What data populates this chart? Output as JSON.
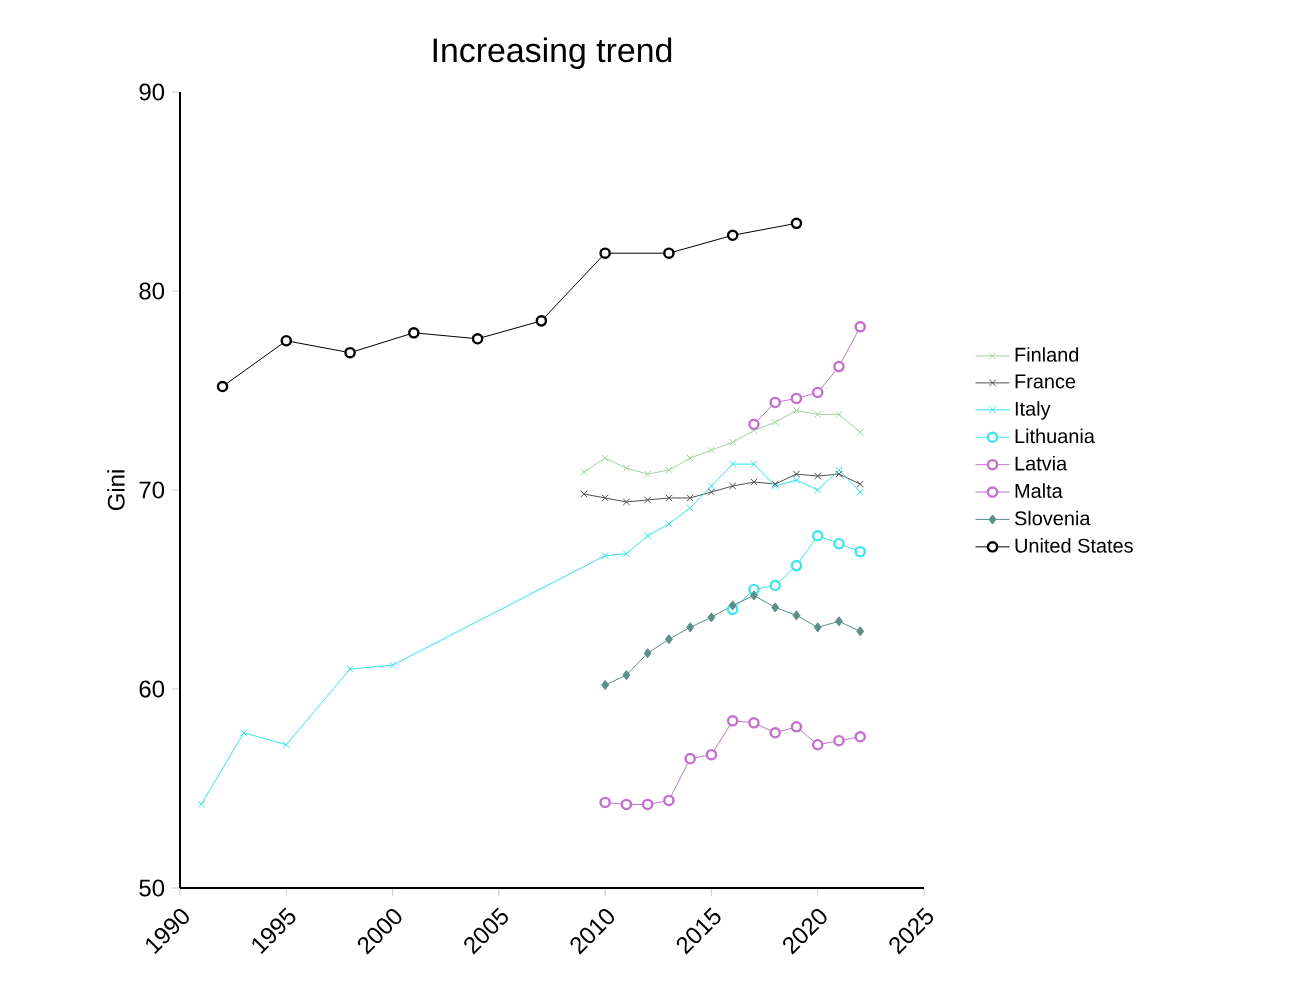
{
  "chart_data": {
    "type": "line",
    "title": "Increasing trend",
    "ylabel": "Gini",
    "xlim": [
      1990,
      2025
    ],
    "ylim": [
      50,
      90
    ],
    "xticks": [
      1990,
      1995,
      2000,
      2005,
      2010,
      2015,
      2020,
      2025
    ],
    "yticks": [
      50,
      60,
      70,
      80,
      90
    ],
    "grid": false,
    "legend": "right",
    "series": [
      {
        "name": "Finland",
        "color": "#9fd49f",
        "marker": "cross",
        "x": [
          2009,
          2010,
          2011,
          2012,
          2013,
          2014,
          2015,
          2016,
          2017,
          2018,
          2019,
          2020,
          2021,
          2022
        ],
        "values": [
          70.9,
          71.6,
          71.1,
          70.8,
          71.0,
          71.6,
          72.0,
          72.4,
          73.0,
          73.4,
          74.0,
          73.8,
          73.8,
          72.9
        ]
      },
      {
        "name": "France",
        "color": "#505050",
        "marker": "cross",
        "x": [
          2009,
          2010,
          2011,
          2012,
          2013,
          2014,
          2015,
          2016,
          2017,
          2018,
          2019,
          2020,
          2021,
          2022
        ],
        "values": [
          69.8,
          69.6,
          69.4,
          69.5,
          69.6,
          69.6,
          69.9,
          70.2,
          70.4,
          70.3,
          70.8,
          70.7,
          70.8,
          70.3
        ]
      },
      {
        "name": "Italy",
        "color": "#33e3ee",
        "marker": "cross",
        "x": [
          1991,
          1993,
          1995,
          1998,
          2000,
          2010,
          2011,
          2012,
          2013,
          2014,
          2015,
          2016,
          2017,
          2018,
          2019,
          2020,
          2021,
          2022
        ],
        "values": [
          54.2,
          57.8,
          57.2,
          61.0,
          61.2,
          66.7,
          66.8,
          67.7,
          68.3,
          69.1,
          70.2,
          71.3,
          71.3,
          70.2,
          70.5,
          70.0,
          71.0,
          69.9
        ]
      },
      {
        "name": "Lithuania",
        "color": "#3ee6ef",
        "marker": "circle",
        "x": [
          2016,
          2017,
          2018,
          2019,
          2020,
          2021,
          2022
        ],
        "values": [
          64.0,
          65.0,
          65.2,
          66.2,
          67.7,
          67.3,
          66.9
        ]
      },
      {
        "name": "Latvia",
        "color": "#c272cc",
        "marker": "circle",
        "x": [
          2017,
          2018,
          2019,
          2020,
          2021,
          2022
        ],
        "values": [
          73.3,
          74.4,
          74.6,
          74.9,
          76.2,
          78.2
        ]
      },
      {
        "name": "Malta",
        "color": "#c272cc",
        "marker": "circle",
        "x": [
          2010,
          2011,
          2012,
          2013,
          2014,
          2015,
          2016,
          2017,
          2018,
          2019,
          2020,
          2021,
          2022
        ],
        "values": [
          54.3,
          54.2,
          54.2,
          54.4,
          56.5,
          56.7,
          58.4,
          58.3,
          57.8,
          58.1,
          57.2,
          57.4,
          57.6
        ]
      },
      {
        "name": "Slovenia",
        "color": "#5a9088",
        "marker": "diamond",
        "x": [
          2010,
          2011,
          2012,
          2013,
          2014,
          2015,
          2016,
          2017,
          2018,
          2019,
          2020,
          2021,
          2022
        ],
        "values": [
          60.2,
          60.7,
          61.8,
          62.5,
          63.1,
          63.6,
          64.2,
          64.7,
          64.1,
          63.7,
          63.1,
          63.4,
          62.9
        ]
      },
      {
        "name": "United States",
        "color": "#000000",
        "marker": "circle",
        "x": [
          1992,
          1995,
          1998,
          2001,
          2004,
          2007,
          2010,
          2013,
          2016,
          2019
        ],
        "values": [
          75.2,
          77.5,
          76.9,
          77.9,
          77.6,
          78.5,
          81.9,
          81.9,
          82.8,
          83.4
        ]
      }
    ]
  }
}
